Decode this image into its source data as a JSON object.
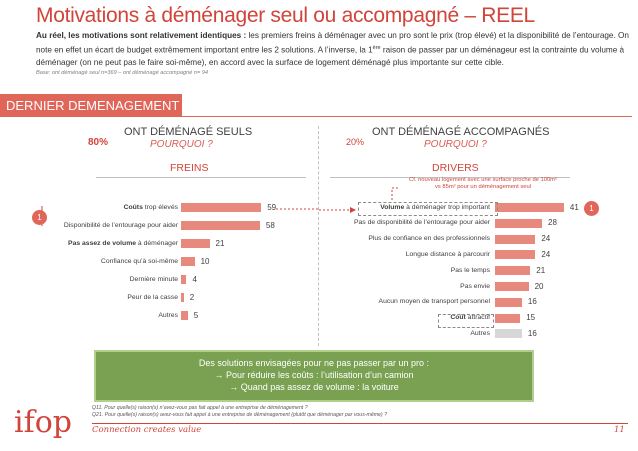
{
  "title": "Motivations à déménager seul ou accompagné – REEL",
  "intro": {
    "bold_part": "Au réel, les motivations sont relativement identiques :",
    "part1": " les premiers freins à déménager avec un pro sont le prix (trop élevé) et la disponibilité de l’entourage. On note en effet un écart de budget extrêmement important entre les 2 solutions. A l’inverse, la 1",
    "superscript": "ère",
    "part2": " raison de passer par un déménageur est la contrainte du volume à déménager (on ne peut pas le faire soi-même), en accord avec la surface de logement déménagé plus importante sur cette cible."
  },
  "base_note": "Base: ont déménagé seul n=369 – ont déménagé accompagné n= 94",
  "section_banner": "DERNIER DEMENAGEMENT",
  "left_panel": {
    "title": "ONT DÉMÉNAGÉ SEULS",
    "subtitle": "POURQUOI ?",
    "pct": "80%",
    "column_header": "FREINS"
  },
  "right_panel": {
    "title": "ONT DÉMÉNAGÉ ACCOMPAGNÉS",
    "subtitle": "POURQUOI ?",
    "pct": "20%",
    "column_header": "DRIVERS"
  },
  "badge_number": "1",
  "note_line1": "Cf. nouveau logement avec une surface proche de 100m²",
  "note_line2": "vs 85m² pour un déménagement seul",
  "chart_data": [
    {
      "type": "bar",
      "orientation": "horizontal",
      "categories": [
        {
          "bold": "Coûts",
          "rest": " trop élevés"
        },
        {
          "bold": "",
          "rest": "Disponibilité de l’entourage pour aider"
        },
        {
          "bold": "Pas assez de volume",
          "rest": " à déménager"
        },
        {
          "bold": "",
          "rest": "Confiance qu’à soi-même"
        },
        {
          "bold": "",
          "rest": "Dernière minute"
        },
        {
          "bold": "",
          "rest": "Peur de la casse"
        },
        {
          "bold": "",
          "rest": "Autres"
        }
      ],
      "values": [
        59,
        58,
        21,
        10,
        4,
        2,
        5
      ],
      "grey_last": false,
      "xlim": [
        0,
        100
      ]
    },
    {
      "type": "bar",
      "orientation": "horizontal",
      "categories": [
        {
          "bold": "Volume",
          "rest": " à déménager trop important"
        },
        {
          "bold": "",
          "rest": "Pas de disponibilité de l’entourage pour aider"
        },
        {
          "bold": "",
          "rest": "Plus de confiance en des professionnels"
        },
        {
          "bold": "",
          "rest": "Longue distance à parcourir"
        },
        {
          "bold": "",
          "rest": "Pas le temps"
        },
        {
          "bold": "",
          "rest": "Pas envie"
        },
        {
          "bold": "",
          "rest": "Aucun moyen de transport personnel"
        },
        {
          "bold": "Coût",
          "rest": " attractif"
        },
        {
          "bold": "",
          "rest": "Autres"
        }
      ],
      "values": [
        41,
        28,
        24,
        24,
        21,
        20,
        16,
        15,
        16
      ],
      "grey_last": true,
      "xlim": [
        0,
        100
      ]
    }
  ],
  "solutions": {
    "line1": "Des solutions envisagées pour ne pas passer par un pro :",
    "line2": "Pour réduire les coûts : l’utilisation d’un camion",
    "line3": "Quand pas assez de volume : la voiture",
    "arrow": "→"
  },
  "footnotes": {
    "q11": "Q11. Pour quelle(s) raison(s) n’avez-vous pas fait appel à une entreprise de déménagement ?",
    "q21": "Q21. Pour quelle(s) raison(s) avez-vous fait appel à une entreprise de déménagement (plutôt que déménager par vous-même) ?"
  },
  "tagline": "Connection creates value",
  "page_number": "11",
  "logo_text": "ifop"
}
